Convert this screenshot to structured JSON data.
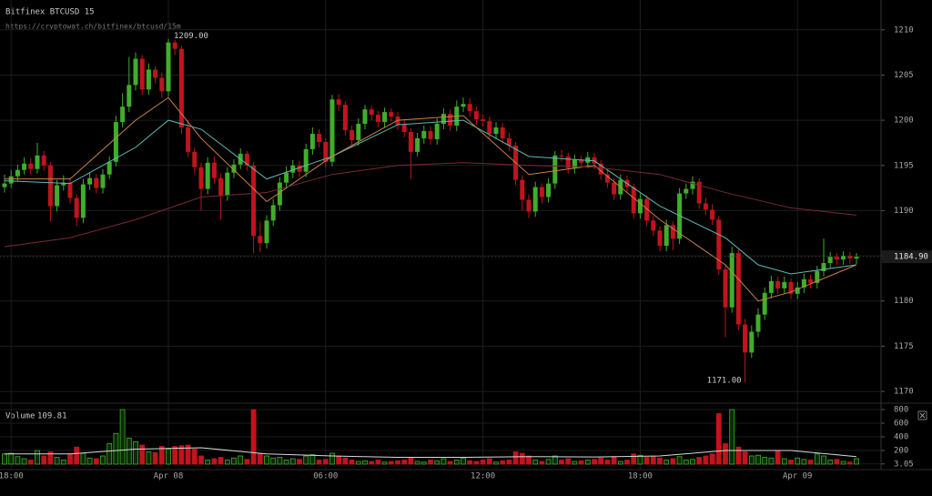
{
  "header": {
    "title": "Bitfinex BTCUSD 15",
    "url": "https://cryptowat.ch/bitfinex/btcusd/15m"
  },
  "chart_data": [
    {
      "type": "candlestick",
      "categories": [
        null,
        "18:00",
        null,
        null,
        null,
        null,
        null,
        null,
        null,
        null,
        null,
        null,
        null,
        null,
        null,
        null,
        null,
        null,
        null,
        null,
        null,
        null,
        null,
        null,
        null,
        "Apr 08",
        null,
        null,
        null,
        null,
        null,
        null,
        null,
        null,
        null,
        null,
        null,
        null,
        null,
        null,
        null,
        null,
        null,
        null,
        null,
        null,
        null,
        null,
        null,
        "06:00",
        null,
        null,
        null,
        null,
        null,
        null,
        null,
        null,
        null,
        null,
        null,
        null,
        null,
        null,
        null,
        null,
        null,
        null,
        null,
        null,
        null,
        null,
        null,
        "12:00",
        null,
        null,
        null,
        null,
        null,
        null,
        null,
        null,
        null,
        null,
        null,
        null,
        null,
        null,
        null,
        null,
        null,
        null,
        null,
        null,
        null,
        null,
        null,
        "18:00",
        null,
        null,
        null,
        null,
        null,
        null,
        null,
        null,
        null,
        null,
        null,
        null,
        null,
        null,
        null,
        null,
        null,
        null,
        null,
        null,
        null,
        null,
        null,
        "Apr 09",
        null,
        null,
        null,
        null,
        null,
        null,
        null,
        null,
        null
      ],
      "open": [
        1192.6,
        1193.0,
        1193.8,
        1194.5,
        1195.2,
        1194.6,
        1196.1,
        1195.0,
        1190.5,
        1192.8,
        1193.1,
        1191.4,
        1189.2,
        1192.9,
        1193.6,
        1192.5,
        1194.0,
        1195.4,
        1199.8,
        1201.5,
        1203.9,
        1206.8,
        1203.4,
        1205.6,
        1204.7,
        1203.2,
        1208.6,
        1207.9,
        1199.2,
        1196.5,
        1194.8,
        1192.4,
        1195.3,
        1193.6,
        1191.7,
        1194.2,
        1195.1,
        1196.3,
        1195.0,
        1187.2,
        1186.4,
        1188.9,
        1190.6,
        1193.1,
        1194.2,
        1195.0,
        1194.3,
        1196.8,
        1198.5,
        1197.6,
        1195.4,
        1202.3,
        1201.7,
        1198.9,
        1197.8,
        1199.6,
        1201.2,
        1200.6,
        1199.8,
        1200.9,
        1200.4,
        1199.5,
        1198.7,
        1196.5,
        1198.0,
        1198.8,
        1197.9,
        1199.6,
        1200.7,
        1199.4,
        1201.5,
        1201.8,
        1201.0,
        1200.1,
        1199.9,
        1198.5,
        1199.2,
        1198.0,
        1197.2,
        1193.4,
        1191.2,
        1189.9,
        1192.6,
        1191.5,
        1193.0,
        1196.1,
        1196.0,
        1194.7,
        1195.6,
        1195.3,
        1195.9,
        1195.2,
        1194.0,
        1193.1,
        1191.8,
        1193.4,
        1192.6,
        1189.7,
        1191.3,
        1188.9,
        1187.8,
        1186.1,
        1188.4,
        1186.9,
        1191.9,
        1192.4,
        1193.2,
        1190.8,
        1190.1,
        1189.0,
        1183.5,
        1179.3,
        1185.3,
        1177.4,
        1174.3,
        1176.6,
        1178.5,
        1180.9,
        1182.2,
        1181.4,
        1182.1,
        1180.8,
        1181.5,
        1182.4,
        1182.0,
        1183.3,
        1184.2,
        1184.9,
        1184.6,
        1185.0,
        1184.7
      ],
      "high": [
        1194.0,
        1194.5,
        1195.1,
        1195.9,
        1195.8,
        1197.5,
        1196.6,
        1195.4,
        1193.4,
        1193.9,
        1193.5,
        1191.8,
        1193.5,
        1194.2,
        1194.0,
        1194.6,
        1196.0,
        1200.5,
        1203.0,
        1207.0,
        1207.5,
        1207.2,
        1206.3,
        1206.0,
        1205.3,
        1209.0,
        1208.9,
        1208.2,
        1200.0,
        1197.0,
        1195.3,
        1195.9,
        1196.0,
        1194.1,
        1194.8,
        1195.7,
        1196.9,
        1196.6,
        1195.4,
        1188.8,
        1189.5,
        1191.3,
        1193.7,
        1194.9,
        1195.6,
        1195.5,
        1197.4,
        1199.2,
        1199.0,
        1198.0,
        1202.8,
        1202.9,
        1202.1,
        1199.4,
        1200.2,
        1201.7,
        1201.6,
        1201.0,
        1201.4,
        1201.3,
        1200.9,
        1200.0,
        1199.1,
        1198.6,
        1199.4,
        1199.3,
        1200.2,
        1201.3,
        1201.2,
        1202.2,
        1202.5,
        1202.4,
        1201.5,
        1200.6,
        1200.4,
        1199.8,
        1199.7,
        1198.6,
        1197.6,
        1193.9,
        1191.8,
        1193.2,
        1193.0,
        1193.6,
        1196.6,
        1196.7,
        1196.4,
        1196.2,
        1196.1,
        1196.5,
        1196.4,
        1195.6,
        1194.5,
        1193.6,
        1194.0,
        1193.9,
        1193.0,
        1191.9,
        1191.7,
        1189.4,
        1188.3,
        1189.0,
        1188.8,
        1192.5,
        1193.0,
        1193.8,
        1193.6,
        1191.4,
        1190.7,
        1189.4,
        1184.0,
        1186.0,
        1185.7,
        1178.0,
        1177.3,
        1179.2,
        1181.5,
        1182.8,
        1182.7,
        1182.7,
        1182.5,
        1182.1,
        1183.0,
        1182.9,
        1183.9,
        1186.9,
        1185.4,
        1185.3,
        1185.5,
        1185.4,
        1185.3
      ],
      "low": [
        1192.0,
        1192.5,
        1193.3,
        1194.0,
        1194.0,
        1194.1,
        1194.4,
        1188.8,
        1189.9,
        1192.2,
        1190.8,
        1188.3,
        1188.6,
        1192.3,
        1191.9,
        1191.9,
        1193.5,
        1194.9,
        1199.2,
        1200.9,
        1203.3,
        1202.8,
        1202.8,
        1204.1,
        1202.5,
        1202.6,
        1207.2,
        1198.5,
        1195.9,
        1194.1,
        1190.0,
        1191.8,
        1193.0,
        1189.0,
        1191.1,
        1193.6,
        1194.6,
        1194.4,
        1185.3,
        1185.4,
        1185.8,
        1188.3,
        1190.0,
        1192.5,
        1193.6,
        1193.7,
        1193.7,
        1196.2,
        1197.0,
        1194.8,
        1194.9,
        1201.0,
        1198.3,
        1197.1,
        1197.2,
        1199.0,
        1200.0,
        1199.2,
        1199.2,
        1199.8,
        1198.9,
        1198.1,
        1193.5,
        1196.0,
        1197.4,
        1197.3,
        1197.3,
        1199.0,
        1198.8,
        1198.8,
        1200.9,
        1200.4,
        1199.5,
        1199.3,
        1197.9,
        1197.9,
        1197.4,
        1196.6,
        1192.8,
        1190.0,
        1189.2,
        1189.3,
        1190.8,
        1190.9,
        1192.4,
        1195.4,
        1194.1,
        1194.1,
        1194.7,
        1194.7,
        1194.6,
        1193.4,
        1192.5,
        1191.2,
        1191.2,
        1192.0,
        1189.1,
        1189.1,
        1188.3,
        1187.2,
        1185.5,
        1185.5,
        1185.6,
        1186.3,
        1191.3,
        1191.8,
        1190.2,
        1189.5,
        1188.4,
        1182.9,
        1176.0,
        1178.7,
        1176.8,
        1171.0,
        1173.7,
        1176.0,
        1177.9,
        1180.3,
        1180.8,
        1180.8,
        1180.2,
        1180.2,
        1180.9,
        1181.4,
        1181.4,
        1182.7,
        1183.6,
        1184.0,
        1184.0,
        1184.1,
        1184.1
      ],
      "close": [
        1193.0,
        1193.8,
        1194.5,
        1195.2,
        1194.6,
        1196.1,
        1195.0,
        1190.5,
        1192.8,
        1193.1,
        1191.4,
        1189.2,
        1192.9,
        1193.6,
        1192.5,
        1194.0,
        1195.4,
        1199.8,
        1201.5,
        1203.9,
        1206.8,
        1203.4,
        1205.6,
        1204.7,
        1203.2,
        1208.6,
        1207.9,
        1199.2,
        1196.5,
        1194.8,
        1192.4,
        1195.3,
        1193.6,
        1191.7,
        1194.2,
        1195.1,
        1196.3,
        1195.0,
        1187.2,
        1186.4,
        1188.9,
        1190.6,
        1193.1,
        1194.2,
        1195.0,
        1194.3,
        1196.8,
        1198.5,
        1197.6,
        1195.4,
        1202.3,
        1201.7,
        1198.9,
        1197.8,
        1199.6,
        1201.2,
        1200.6,
        1199.8,
        1200.9,
        1200.4,
        1199.5,
        1198.7,
        1196.5,
        1198.0,
        1198.8,
        1197.9,
        1199.6,
        1200.7,
        1199.4,
        1201.5,
        1201.8,
        1201.0,
        1200.1,
        1199.9,
        1198.5,
        1199.2,
        1198.0,
        1197.2,
        1193.4,
        1191.2,
        1189.9,
        1192.6,
        1191.5,
        1193.0,
        1196.1,
        1196.0,
        1194.7,
        1195.6,
        1195.3,
        1195.9,
        1195.2,
        1194.0,
        1193.1,
        1191.8,
        1193.4,
        1192.6,
        1189.7,
        1191.3,
        1188.9,
        1187.8,
        1186.1,
        1188.4,
        1186.9,
        1191.9,
        1192.4,
        1193.2,
        1190.8,
        1190.1,
        1189.0,
        1183.5,
        1179.3,
        1185.3,
        1177.4,
        1174.3,
        1176.6,
        1178.5,
        1180.9,
        1182.2,
        1181.4,
        1182.1,
        1180.8,
        1181.5,
        1182.4,
        1182.0,
        1183.3,
        1184.2,
        1184.9,
        1184.6,
        1185.0,
        1184.7,
        1184.9
      ],
      "up_color": "#3fae2a",
      "down_color": "#c0141e",
      "ylim": [
        1169,
        1213.3
      ],
      "yticks": [
        1170,
        1175,
        1180,
        1185,
        1190,
        1195,
        1200,
        1205,
        1210
      ],
      "grid": true,
      "high_label": {
        "value": 1209,
        "label": "1209.00"
      },
      "low_label": {
        "value": 1171,
        "label": "1171.00"
      },
      "last_price": {
        "value": 1184.9,
        "label": "1184.90"
      },
      "overlays": [
        {
          "color": "#5fb8b0",
          "x": [
            0,
            10,
            20,
            25,
            30,
            40,
            50,
            60,
            70,
            80,
            90,
            100,
            110,
            115,
            120,
            130
          ],
          "values": [
            1193.3,
            1193,
            1197,
            1200,
            1199,
            1193.5,
            1196,
            1199.5,
            1200,
            1196,
            1195.5,
            1190.5,
            1187,
            1184,
            1183,
            1184
          ]
        },
        {
          "color": "#c8824a",
          "x": [
            0,
            10,
            20,
            25,
            30,
            40,
            50,
            60,
            70,
            80,
            90,
            100,
            110,
            115,
            120,
            130
          ],
          "values": [
            1193.5,
            1193.5,
            1200,
            1202.5,
            1198,
            1191,
            1196,
            1200,
            1200.5,
            1194,
            1195,
            1189,
            1184,
            1180,
            1181,
            1184
          ]
        },
        {
          "color": "#7a2a30",
          "x": [
            0,
            10,
            20,
            30,
            40,
            50,
            60,
            70,
            80,
            90,
            100,
            110,
            120,
            130
          ],
          "values": [
            1186,
            1187,
            1189,
            1191.5,
            1192,
            1194,
            1195,
            1195.3,
            1195,
            1194.8,
            1194,
            1192,
            1190.3,
            1189.5
          ]
        }
      ]
    },
    {
      "type": "bar",
      "title": "Volume",
      "last_value": 109.81,
      "values": [
        150,
        160,
        110,
        80,
        60,
        200,
        120,
        180,
        100,
        60,
        140,
        250,
        160,
        90,
        80,
        120,
        300,
        450,
        800,
        380,
        330,
        280,
        180,
        170,
        260,
        220,
        260,
        270,
        280,
        220,
        120,
        60,
        80,
        100,
        60,
        90,
        120,
        70,
        800,
        160,
        120,
        90,
        100,
        60,
        80,
        70,
        120,
        140,
        60,
        70,
        160,
        120,
        90,
        60,
        40,
        50,
        40,
        60,
        30,
        40,
        50,
        60,
        90,
        40,
        30,
        60,
        50,
        80,
        40,
        60,
        90,
        50,
        40,
        60,
        80,
        30,
        50,
        60,
        180,
        160,
        120,
        60,
        40,
        70,
        120,
        60,
        80,
        40,
        50,
        60,
        70,
        90,
        60,
        110,
        40,
        60,
        150,
        130,
        100,
        110,
        90,
        60,
        80,
        110,
        60,
        70,
        100,
        120,
        150,
        740,
        300,
        800,
        250,
        180,
        120,
        130,
        100,
        90,
        200,
        80,
        60,
        90,
        70,
        60,
        150,
        120,
        60,
        70,
        40,
        30,
        80
      ],
      "ylim": [
        -60,
        840
      ],
      "yticks": [
        3.05,
        200,
        400,
        600,
        800
      ],
      "ma": {
        "color": "#d8d8d8",
        "x": [
          0,
          10,
          20,
          30,
          40,
          50,
          60,
          70,
          80,
          90,
          100,
          110,
          120,
          130
        ],
        "values": [
          150,
          150,
          220,
          240,
          150,
          120,
          100,
          100,
          110,
          105,
          120,
          200,
          200,
          110
        ]
      }
    }
  ]
}
